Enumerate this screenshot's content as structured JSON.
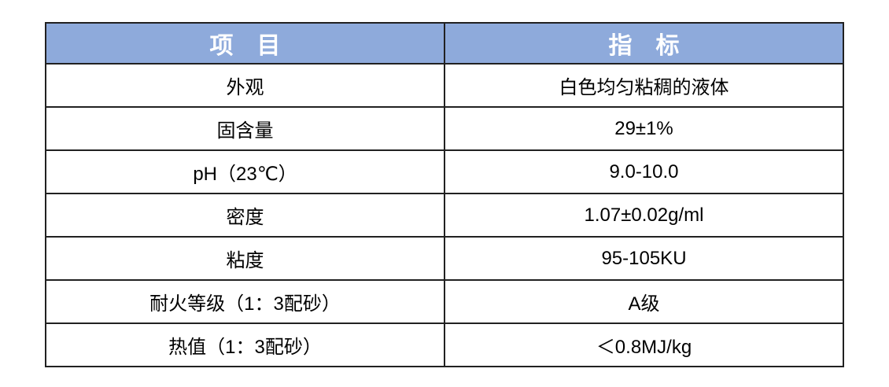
{
  "table": {
    "col1_header": "项　目",
    "col2_header": "指　标",
    "rows": [
      {
        "item": "外观",
        "value": "白色均匀粘稠的液体"
      },
      {
        "item": "固含量",
        "value": "29±1%"
      },
      {
        "item": "pH（23℃）",
        "value": "9.0-10.0"
      },
      {
        "item": "密度",
        "value": "1.07±0.02g/ml"
      },
      {
        "item": "粘度",
        "value": "95-105KU"
      },
      {
        "item": "耐火等级（1：3配砂）",
        "value": "A级"
      },
      {
        "item": "热值（1：3配砂）",
        "value": "＜0.8MJ/kg"
      }
    ]
  },
  "colors": {
    "header_bg": "#8EAADB",
    "header_text": "#FFFFFF",
    "border": "#212121",
    "body_text": "#000000",
    "page_background": "#FFFFFF"
  }
}
